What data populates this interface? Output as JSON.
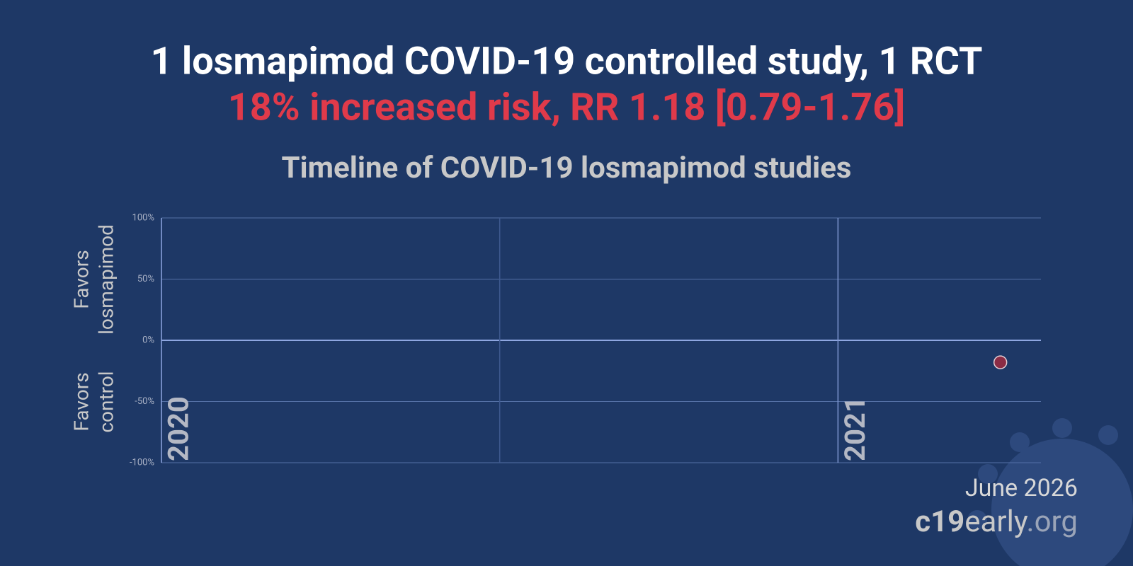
{
  "chart_data": {
    "type": "scatter",
    "title": "1 losmapimod COVID-19 controlled study, 1 RCT",
    "subtitle": "18% increased risk, RR 1.18 [0.79-1.76]",
    "chart_title": "Timeline of COVID-19 losmapimod studies",
    "upper_label": [
      "Favors",
      "losmapimod"
    ],
    "lower_label": [
      "Favors",
      "control"
    ],
    "x": [
      2021.24
    ],
    "values": [
      -18
    ],
    "color": "#8b2c45",
    "xlim": [
      2020,
      2021.3
    ],
    "xticks": [
      2020,
      2021
    ],
    "x_gridlines": [
      2020,
      2020.5,
      2021
    ],
    "ylim": [
      -100,
      100
    ],
    "yticks": [
      {
        "value": -100,
        "label": "-100%"
      },
      {
        "value": -50,
        "label": "-50%"
      },
      {
        "value": 0,
        "label": "0%"
      },
      {
        "value": 50,
        "label": "50%"
      },
      {
        "value": 100,
        "label": "100%"
      }
    ],
    "grid": true,
    "date": "June 2026",
    "site": [
      "c19",
      "early",
      ".org"
    ]
  }
}
